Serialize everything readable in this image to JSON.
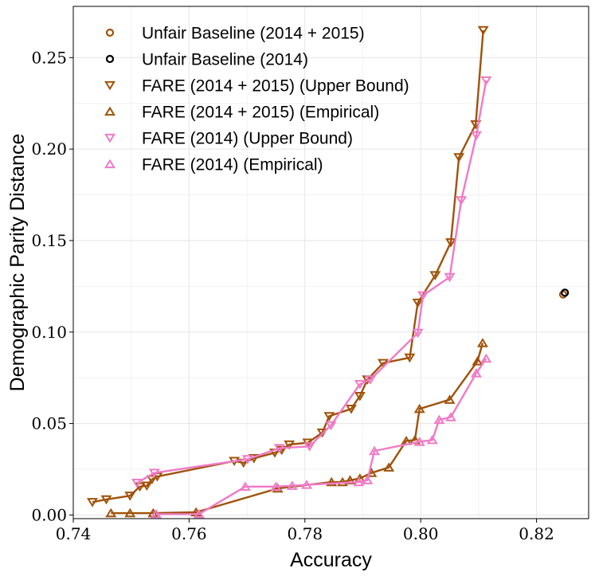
{
  "chart_data": {
    "type": "scatter",
    "xlabel": "Accuracy",
    "ylabel": "Demographic Parity Distance",
    "xlim": [
      0.74,
      0.829
    ],
    "ylim": [
      -0.002,
      0.278
    ],
    "x_ticks": [
      0.74,
      0.76,
      0.78,
      0.8,
      0.82
    ],
    "x_tick_labels": [
      "0.74",
      "0.76",
      "0.78",
      "0.80",
      "0.82"
    ],
    "y_ticks": [
      0.0,
      0.05,
      0.1,
      0.15,
      0.2,
      0.25
    ],
    "y_tick_labels": [
      "0.00",
      "0.05",
      "0.10",
      "0.15",
      "0.20",
      "0.25"
    ],
    "grid": true,
    "legend_position": "top-left",
    "series": [
      {
        "name": "Unfair Baseline (2014 + 2015)",
        "marker": "circle",
        "color": "#a0520a",
        "connected": false,
        "points": [
          [
            0.8246,
            0.1205
          ]
        ]
      },
      {
        "name": "Unfair Baseline (2014)",
        "marker": "circle",
        "color": "#000000",
        "connected": false,
        "points": [
          [
            0.8249,
            0.1215
          ]
        ]
      },
      {
        "name": "FARE (2014 + 2015) (Upper Bound)",
        "marker": "triangle-down",
        "color": "#a0520a",
        "connected": true,
        "points": [
          [
            0.7433,
            0.007
          ],
          [
            0.7457,
            0.0085
          ],
          [
            0.7498,
            0.0105
          ],
          [
            0.7515,
            0.0155
          ],
          [
            0.7527,
            0.016
          ],
          [
            0.7536,
            0.0195
          ],
          [
            0.7545,
            0.021
          ],
          [
            0.7678,
            0.0295
          ],
          [
            0.7694,
            0.0285
          ],
          [
            0.7712,
            0.031
          ],
          [
            0.7748,
            0.034
          ],
          [
            0.776,
            0.0355
          ],
          [
            0.7773,
            0.0385
          ],
          [
            0.7805,
            0.0395
          ],
          [
            0.783,
            0.045
          ],
          [
            0.7842,
            0.054
          ],
          [
            0.788,
            0.058
          ],
          [
            0.7895,
            0.065
          ],
          [
            0.7908,
            0.074
          ],
          [
            0.7935,
            0.083
          ],
          [
            0.7981,
            0.086
          ],
          [
            0.7995,
            0.116
          ],
          [
            0.8025,
            0.131
          ],
          [
            0.8052,
            0.149
          ],
          [
            0.8066,
            0.1955
          ],
          [
            0.8095,
            0.2135
          ],
          [
            0.8108,
            0.265
          ]
        ]
      },
      {
        "name": "FARE (2014 + 2015) (Empirical)",
        "marker": "triangle-up",
        "color": "#a0520a",
        "connected": true,
        "points": [
          [
            0.7465,
            0.001
          ],
          [
            0.7498,
            0.001
          ],
          [
            0.7538,
            0.001
          ],
          [
            0.7612,
            0.0015
          ],
          [
            0.7753,
            0.0145
          ],
          [
            0.7846,
            0.018
          ],
          [
            0.7865,
            0.018
          ],
          [
            0.7878,
            0.019
          ],
          [
            0.7895,
            0.02
          ],
          [
            0.7915,
            0.023
          ],
          [
            0.7945,
            0.026
          ],
          [
            0.7975,
            0.0405
          ],
          [
            0.799,
            0.041
          ],
          [
            0.7998,
            0.058
          ],
          [
            0.805,
            0.063
          ],
          [
            0.8098,
            0.084
          ],
          [
            0.8107,
            0.094
          ]
        ]
      },
      {
        "name": "FARE (2014) (Upper Bound)",
        "marker": "triangle-down",
        "color": "#f07ac6",
        "connected": true,
        "points": [
          [
            0.751,
            0.0175
          ],
          [
            0.754,
            0.023
          ],
          [
            0.7701,
            0.0305
          ],
          [
            0.7756,
            0.0365
          ],
          [
            0.7808,
            0.0375
          ],
          [
            0.7845,
            0.049
          ],
          [
            0.7895,
            0.0715
          ],
          [
            0.7913,
            0.074
          ],
          [
            0.7995,
            0.0995
          ],
          [
            0.8004,
            0.12
          ],
          [
            0.805,
            0.13
          ],
          [
            0.807,
            0.172
          ],
          [
            0.8096,
            0.2075
          ],
          [
            0.8113,
            0.2375
          ]
        ]
      },
      {
        "name": "FARE (2014) (Empirical)",
        "marker": "triangle-up",
        "color": "#f07ac6",
        "connected": true,
        "points": [
          [
            0.7543,
            0.0005
          ],
          [
            0.7617,
            0.0005
          ],
          [
            0.7697,
            0.0155
          ],
          [
            0.775,
            0.0155
          ],
          [
            0.7778,
            0.016
          ],
          [
            0.7803,
            0.0165
          ],
          [
            0.7893,
            0.018
          ],
          [
            0.7908,
            0.019
          ],
          [
            0.792,
            0.035
          ],
          [
            0.7998,
            0.04
          ],
          [
            0.802,
            0.041
          ],
          [
            0.8032,
            0.052
          ],
          [
            0.8052,
            0.0535
          ],
          [
            0.8096,
            0.0775
          ],
          [
            0.8113,
            0.0855
          ]
        ]
      }
    ]
  }
}
